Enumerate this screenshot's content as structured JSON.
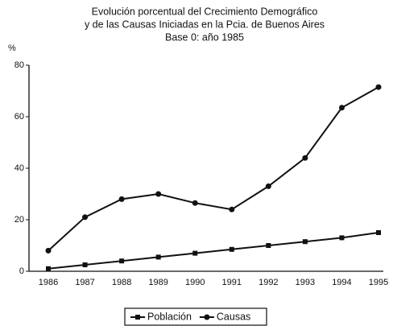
{
  "chart_data": {
    "type": "line",
    "title": [
      "Evolución porcentual del Crecimiento Demográfico",
      "y de las Causas Iniciadas en la Pcia. de Buenos Aires",
      "Base 0: año 1985"
    ],
    "y_label": "%",
    "categories": [
      "1986",
      "1987",
      "1988",
      "1989",
      "1990",
      "1991",
      "1992",
      "1993",
      "1994",
      "1995"
    ],
    "series": [
      {
        "name": "Población",
        "color": "#111111",
        "marker": "square",
        "values": [
          1,
          2.5,
          4,
          5.5,
          7,
          8.5,
          10,
          11.5,
          13,
          15
        ]
      },
      {
        "name": "Causas",
        "color": "#111111",
        "marker": "circle",
        "values": [
          8,
          21,
          28,
          30,
          26.5,
          24,
          33,
          44,
          63.5,
          71.5
        ]
      }
    ],
    "ylim": [
      0,
      80
    ],
    "yticks": [
      0,
      20,
      40,
      60,
      80
    ],
    "grid": false,
    "legend": "bottom"
  }
}
